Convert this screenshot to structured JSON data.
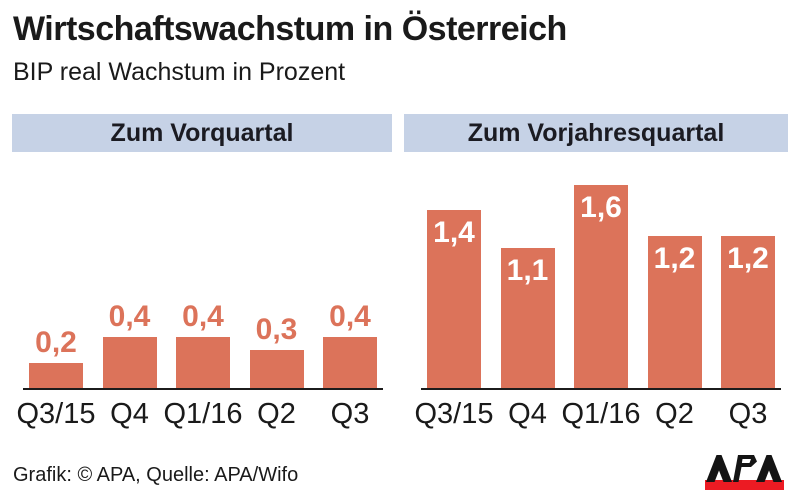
{
  "header": {
    "title": "Wirtschaftswachstum in Österreich",
    "subtitle": "BIP real Wachstum in Prozent"
  },
  "footer": {
    "credit": "Grafik: © APA, Quelle: APA/Wifo",
    "logo_text": "APA"
  },
  "colors": {
    "bar": "#DC735A",
    "value_label_above": "#DC735A",
    "value_label_inside": "#FFFFFF",
    "panel_header_bg": "#C6D2E6",
    "text": "#1A1A1A",
    "axis": "#1C1C1C",
    "logo_red": "#EC1B23",
    "logo_black": "#141414"
  },
  "chart_data": [
    {
      "type": "bar",
      "title": "Zum Vorquartal",
      "categories": [
        "Q3/15",
        "Q4",
        "Q1/16",
        "Q2",
        "Q3"
      ],
      "values": [
        0.2,
        0.4,
        0.4,
        0.3,
        0.4
      ],
      "value_labels": [
        "0,2",
        "0,4",
        "0,4",
        "0,3",
        "0,4"
      ],
      "label_position": "above",
      "ylim": [
        0,
        1.8
      ],
      "grid": false,
      "legend": false,
      "unit": "Prozent"
    },
    {
      "type": "bar",
      "title": "Zum Vorjahresquartal",
      "categories": [
        "Q3/15",
        "Q4",
        "Q1/16",
        "Q2",
        "Q3"
      ],
      "values": [
        1.4,
        1.1,
        1.6,
        1.2,
        1.2
      ],
      "value_labels": [
        "1,4",
        "1,1",
        "1,6",
        "1,2",
        "1,2"
      ],
      "label_position": "inside",
      "ylim": [
        0,
        1.8
      ],
      "grid": false,
      "legend": false,
      "unit": "Prozent"
    }
  ]
}
